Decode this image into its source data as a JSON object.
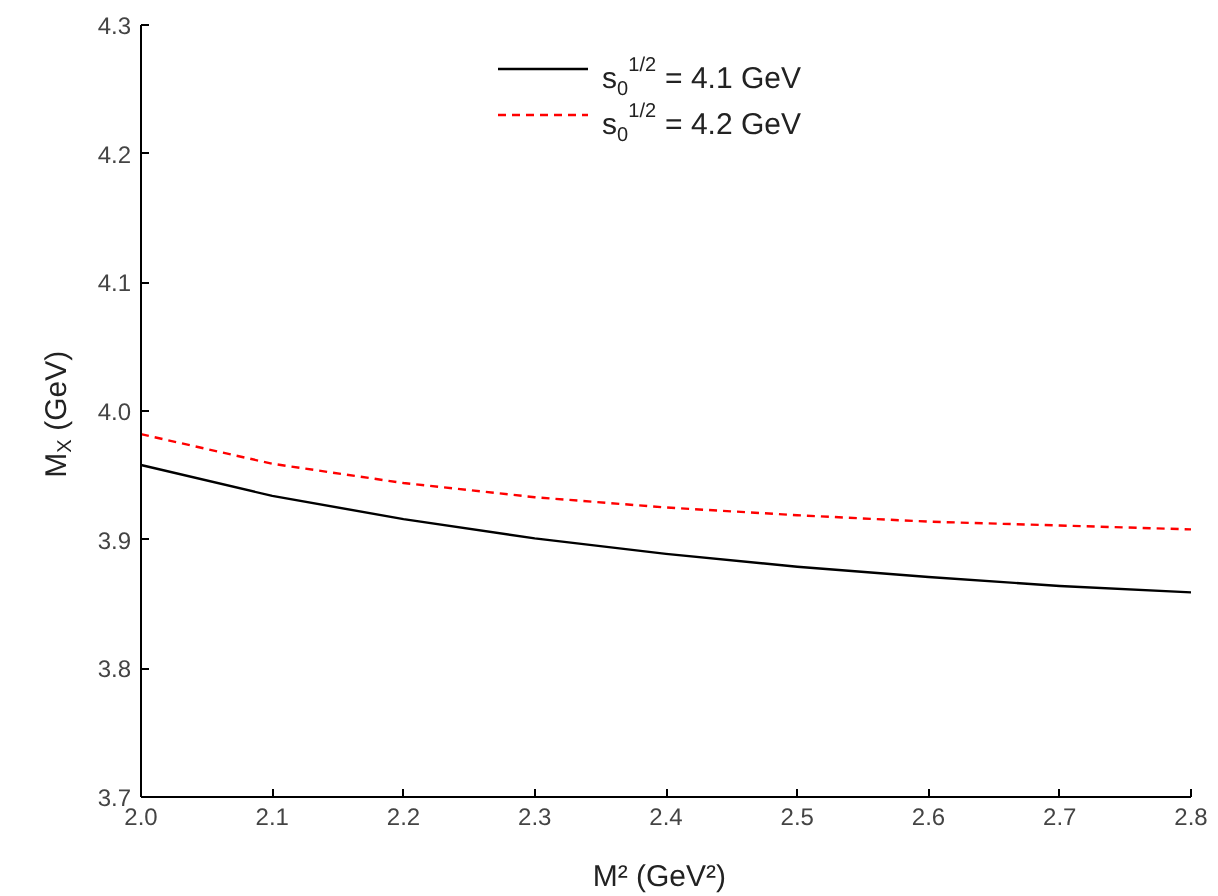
{
  "chart_data": {
    "type": "line",
    "xlabel": "M² (GeV²)",
    "ylabel": "M$_{X}$ (GeV)",
    "x": [
      2.0,
      2.1,
      2.2,
      2.3,
      2.4,
      2.5,
      2.6,
      2.7,
      2.8
    ],
    "series": [
      {
        "name": "s$_{0}$$^{1/2}$ = 4.1 GeV",
        "color": "#000000",
        "line_style": "solid",
        "values": [
          3.958,
          3.934,
          3.916,
          3.901,
          3.889,
          3.879,
          3.871,
          3.864,
          3.859
        ]
      },
      {
        "name": "s$_{0}$$^{1/2}$ = 4.2 GeV",
        "color": "#ff0000",
        "line_style": "dashed",
        "values": [
          3.982,
          3.959,
          3.944,
          3.933,
          3.925,
          3.919,
          3.914,
          3.911,
          3.908
        ]
      }
    ],
    "xlim": [
      2.0,
      2.8
    ],
    "xticks": [
      {
        "value": 2.0,
        "label": "2.0"
      },
      2.1,
      2.2,
      2.3,
      2.4,
      2.5,
      2.6,
      2.7,
      2.8
    ],
    "ylim": [
      3.7,
      4.3
    ],
    "yticks": [
      3.7,
      3.8,
      3.9,
      {
        "value": 4.0,
        "label": "4.0"
      },
      4.1,
      4.2,
      4.3
    ],
    "grid": false,
    "legend": "top",
    "marker": "none"
  }
}
